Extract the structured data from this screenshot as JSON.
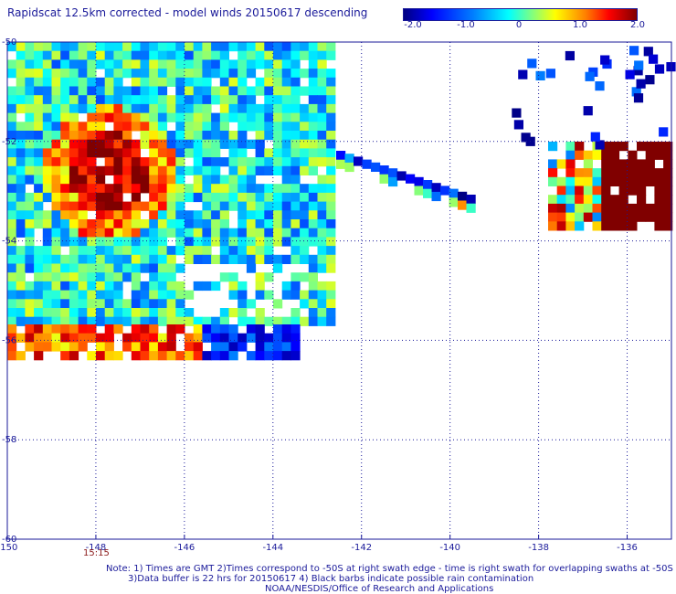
{
  "title": "Rapidscat 12.5km corrected - model winds 20150617 descending",
  "colorbar": {
    "ticks": [
      "-2.0",
      "-1.0",
      "0",
      "1.0",
      "2.0"
    ],
    "colors": [
      "#000080",
      "#0000ff",
      "#0080ff",
      "#00ffff",
      "#80ff80",
      "#ffff00",
      "#ff8000",
      "#ff0000",
      "#800000"
    ]
  },
  "chart_data": {
    "type": "heatmap",
    "title": "Rapidscat 12.5km corrected - model winds 20150617 descending",
    "xlim": [
      -150,
      -135
    ],
    "ylim": [
      -60,
      -50
    ],
    "x_ticks": [
      "-150",
      "-148",
      "-146",
      "-144",
      "-142",
      "-140",
      "-138",
      "-136"
    ],
    "y_ticks": [
      "-50",
      "-52",
      "-54",
      "-56",
      "-58",
      "-60"
    ],
    "value_range": [
      -2.0,
      2.0
    ],
    "grid": true
  },
  "time_label": "15:15",
  "notes": [
    "Note: 1) Times are GMT 2)Times correspond to -50S at right swath edge - time is right swath for overlapping swaths at -50S",
    "3)Data buffer is 22 hrs for 20150617 4) Black barbs indicate possible rain contamination",
    "NOAA/NESDIS/Office of Research and Applications"
  ]
}
